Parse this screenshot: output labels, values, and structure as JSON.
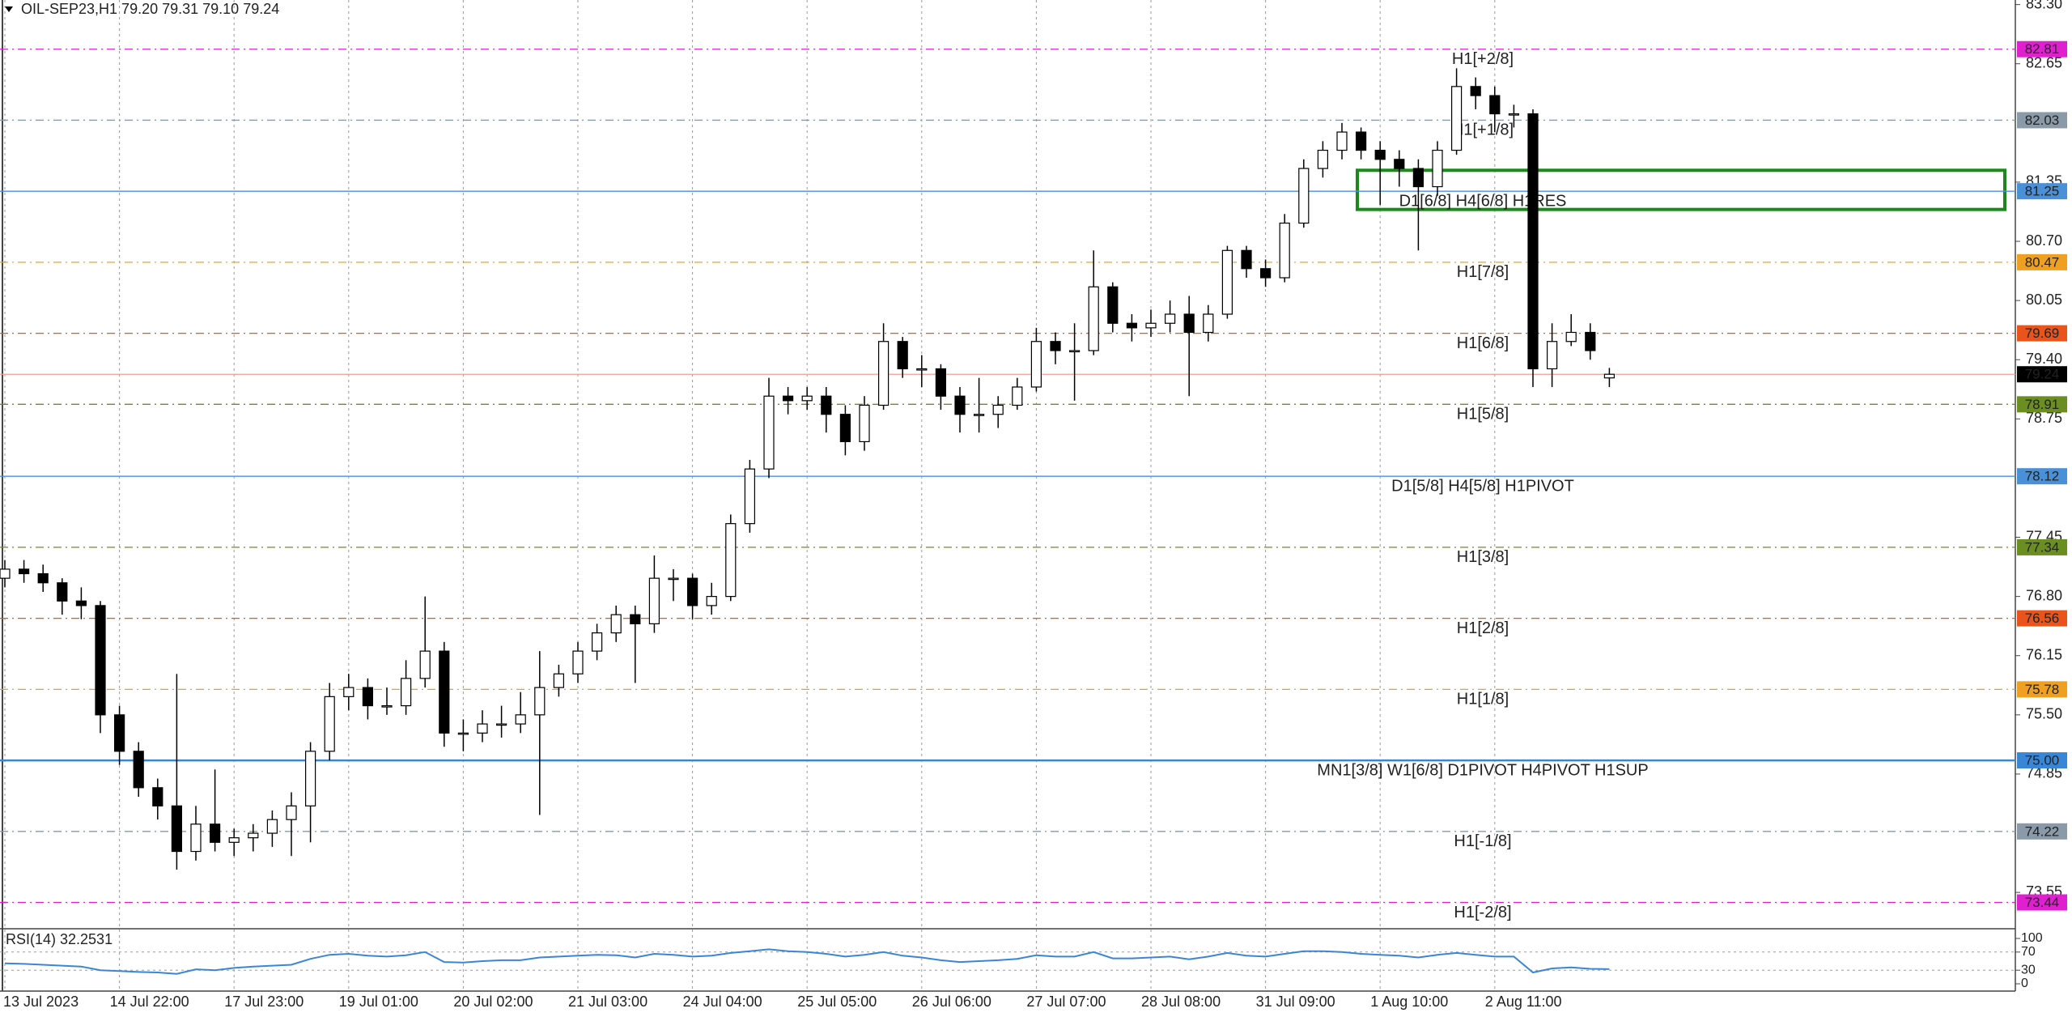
{
  "chart_data": [
    {
      "type": "candlestick",
      "title": "OIL-SEP23,H1  79.20 79.31 79.10 79.24",
      "categories": [
        "13 Jul 2023",
        null,
        null,
        null,
        null,
        null,
        "14 Jul 22:00",
        null,
        null,
        null,
        null,
        null,
        "17 Jul 23:00",
        null,
        null,
        null,
        null,
        null,
        "19 Jul 01:00",
        null,
        null,
        null,
        null,
        null,
        "20 Jul 02:00",
        null,
        null,
        null,
        null,
        null,
        "21 Jul 03:00",
        null,
        null,
        null,
        null,
        null,
        "24 Jul 04:00",
        null,
        null,
        null,
        null,
        null,
        "25 Jul 05:00",
        null,
        null,
        null,
        null,
        null,
        "26 Jul 06:00",
        null,
        null,
        null,
        null,
        null,
        "27 Jul 07:00",
        null,
        null,
        null,
        null,
        null,
        "28 Jul 08:00",
        null,
        null,
        null,
        null,
        null,
        "31 Jul 09:00",
        null,
        null,
        null,
        null,
        null,
        "1 Aug 10:00",
        null,
        null,
        null,
        null,
        null,
        "2 Aug 11:00",
        null,
        null,
        null,
        null,
        null,
        null
      ],
      "ohlc": [
        [
          77.0,
          77.2,
          76.9,
          77.1
        ],
        [
          77.1,
          77.2,
          76.95,
          77.05
        ],
        [
          77.05,
          77.15,
          76.85,
          76.95
        ],
        [
          76.95,
          77.0,
          76.6,
          76.75
        ],
        [
          76.75,
          76.9,
          76.55,
          76.7
        ],
        [
          76.7,
          76.75,
          75.3,
          75.5
        ],
        [
          75.5,
          75.6,
          74.95,
          75.1
        ],
        [
          75.1,
          75.2,
          74.6,
          74.7
        ],
        [
          74.7,
          74.8,
          74.35,
          74.5
        ],
        [
          74.5,
          75.95,
          73.8,
          74.0
        ],
        [
          74.0,
          74.5,
          73.9,
          74.3
        ],
        [
          74.3,
          74.9,
          74.0,
          74.1
        ],
        [
          74.1,
          74.25,
          73.95,
          74.15
        ],
        [
          74.15,
          74.3,
          74.0,
          74.2
        ],
        [
          74.2,
          74.45,
          74.05,
          74.35
        ],
        [
          74.35,
          74.65,
          73.95,
          74.5
        ],
        [
          74.5,
          75.2,
          74.1,
          75.1
        ],
        [
          75.1,
          75.85,
          75.0,
          75.7
        ],
        [
          75.7,
          75.95,
          75.55,
          75.8
        ],
        [
          75.8,
          75.9,
          75.45,
          75.6
        ],
        [
          75.6,
          75.8,
          75.5,
          75.6
        ],
        [
          75.6,
          76.1,
          75.5,
          75.9
        ],
        [
          75.9,
          76.8,
          75.8,
          76.2
        ],
        [
          76.2,
          76.3,
          75.15,
          75.3
        ],
        [
          75.3,
          75.45,
          75.1,
          75.3
        ],
        [
          75.3,
          75.55,
          75.2,
          75.4
        ],
        [
          75.4,
          75.6,
          75.25,
          75.4
        ],
        [
          75.4,
          75.75,
          75.3,
          75.5
        ],
        [
          75.5,
          76.2,
          74.4,
          75.8
        ],
        [
          75.8,
          76.05,
          75.7,
          75.95
        ],
        [
          75.95,
          76.3,
          75.85,
          76.2
        ],
        [
          76.2,
          76.5,
          76.1,
          76.4
        ],
        [
          76.4,
          76.7,
          76.3,
          76.6
        ],
        [
          76.6,
          76.7,
          75.85,
          76.5
        ],
        [
          76.5,
          77.25,
          76.4,
          77.0
        ],
        [
          77.0,
          77.1,
          76.75,
          77.0
        ],
        [
          77.0,
          77.05,
          76.55,
          76.7
        ],
        [
          76.7,
          76.95,
          76.6,
          76.8
        ],
        [
          76.8,
          77.7,
          76.75,
          77.6
        ],
        [
          77.6,
          78.3,
          77.5,
          78.2
        ],
        [
          78.2,
          79.2,
          78.1,
          79.0
        ],
        [
          79.0,
          79.1,
          78.8,
          78.95
        ],
        [
          78.95,
          79.1,
          78.85,
          79.0
        ],
        [
          79.0,
          79.1,
          78.6,
          78.8
        ],
        [
          78.8,
          78.9,
          78.35,
          78.5
        ],
        [
          78.5,
          79.0,
          78.4,
          78.9
        ],
        [
          78.9,
          79.8,
          78.85,
          79.6
        ],
        [
          79.6,
          79.65,
          79.2,
          79.3
        ],
        [
          79.3,
          79.45,
          79.1,
          79.3
        ],
        [
          79.3,
          79.35,
          78.85,
          79.0
        ],
        [
          79.0,
          79.1,
          78.6,
          78.8
        ],
        [
          78.8,
          79.2,
          78.6,
          78.8
        ],
        [
          78.8,
          79.0,
          78.65,
          78.9
        ],
        [
          78.9,
          79.2,
          78.85,
          79.1
        ],
        [
          79.1,
          79.75,
          79.05,
          79.6
        ],
        [
          79.6,
          79.7,
          79.35,
          79.5
        ],
        [
          79.5,
          79.8,
          78.95,
          79.5
        ],
        [
          79.5,
          80.6,
          79.45,
          80.2
        ],
        [
          80.2,
          80.25,
          79.7,
          79.8
        ],
        [
          79.8,
          79.9,
          79.6,
          79.75
        ],
        [
          79.75,
          79.95,
          79.65,
          79.8
        ],
        [
          79.8,
          80.05,
          79.7,
          79.9
        ],
        [
          79.9,
          80.1,
          79.0,
          79.7
        ],
        [
          79.7,
          80.0,
          79.6,
          79.9
        ],
        [
          79.9,
          80.65,
          79.85,
          80.6
        ],
        [
          80.6,
          80.65,
          80.3,
          80.4
        ],
        [
          80.4,
          80.5,
          80.2,
          80.3
        ],
        [
          80.3,
          81.0,
          80.25,
          80.9
        ],
        [
          80.9,
          81.6,
          80.85,
          81.5
        ],
        [
          81.5,
          81.8,
          81.4,
          81.7
        ],
        [
          81.7,
          82.0,
          81.6,
          81.9
        ],
        [
          81.9,
          81.95,
          81.6,
          81.7
        ],
        [
          81.7,
          81.8,
          81.1,
          81.6
        ],
        [
          81.6,
          81.7,
          81.3,
          81.5
        ],
        [
          81.5,
          81.6,
          80.6,
          81.3
        ],
        [
          81.3,
          81.8,
          81.2,
          81.7
        ],
        [
          81.7,
          82.6,
          81.65,
          82.4
        ],
        [
          82.4,
          82.5,
          82.15,
          82.3
        ],
        [
          82.3,
          82.4,
          81.9,
          82.1
        ],
        [
          82.1,
          82.2,
          81.95,
          82.1
        ],
        [
          82.1,
          82.15,
          79.1,
          79.3
        ],
        [
          79.3,
          79.8,
          79.1,
          79.6
        ],
        [
          79.6,
          79.9,
          79.55,
          79.7
        ],
        [
          79.7,
          79.8,
          79.4,
          79.5
        ],
        [
          79.2,
          79.31,
          79.1,
          79.24
        ]
      ],
      "up_color": "#ffffff",
      "down_color": "#000000",
      "wick_color": "#000000",
      "ylim": [
        73.16,
        83.35
      ],
      "yticks": [
        73.55,
        74.85,
        {
          "value": 75.5,
          "label": "75.50"
        },
        76.15,
        {
          "value": 76.8,
          "label": "76.80"
        },
        77.45,
        78.75,
        {
          "value": 79.4,
          "label": "79.40"
        },
        80.05,
        {
          "value": 80.7,
          "label": "80.70"
        },
        81.35,
        82.65,
        {
          "value": 83.3,
          "label": "83.30"
        }
      ],
      "levels": [
        {
          "price": 82.81,
          "name": "H1[+2/8]",
          "color": "#e020d0",
          "style": "dashdot"
        },
        {
          "price": 82.03,
          "name": "H1[+1/8]",
          "color": "#8a9aa8",
          "style": "dashdot"
        },
        {
          "price": 81.25,
          "name": "D1[6/8] H4[6/8] H1RES",
          "color": "#4a90d9",
          "style": "solid"
        },
        {
          "price": 80.47,
          "name": "H1[7/8]",
          "color": "#f0a020",
          "style": "dashdot"
        },
        {
          "price": 79.69,
          "name": "H1[6/8]",
          "color": "#e8541c",
          "style": "dashdot"
        },
        {
          "price": 78.91,
          "name": "H1[5/8]",
          "color": "#6b8e23",
          "style": "dashdot"
        },
        {
          "price": 78.12,
          "name": "D1[5/8] H4[5/8] H1PIVOT",
          "color": "#4a90d9",
          "style": "solid"
        },
        {
          "price": 77.34,
          "name": "H1[3/8]",
          "color": "#6b8e23",
          "style": "dashdot"
        },
        {
          "price": 76.56,
          "name": "H1[2/8]",
          "color": "#e8541c",
          "style": "dashdot"
        },
        {
          "price": 75.78,
          "name": "H1[1/8]",
          "color": "#f0a020",
          "style": "dashdot"
        },
        {
          "price": {
            "value": 75,
            "label": "75.00"
          },
          "name": "MN1[3/8] W1[6/8] D1PIVOT H4PIVOT H1SUP",
          "color": "#3a86d6",
          "style": "bold"
        },
        {
          "price": 74.22,
          "name": "H1[-1/8]",
          "color": "#8a9aa8",
          "style": "dashdot"
        },
        {
          "price": 73.44,
          "name": "H1[-2/8]",
          "color": "#e020d0",
          "style": "dashdot"
        }
      ],
      "last": {
        "price": 79.24,
        "color": "#f0a090",
        "box_color": "#000000"
      },
      "zone": {
        "high": 81.48,
        "low": 81.05,
        "color": "#1a8a1a"
      },
      "grid": true
    },
    {
      "type": "line",
      "title": "RSI(14) 32.2531",
      "color": "#3a86d6",
      "values": [
        45,
        44,
        42,
        40,
        38,
        30,
        28,
        26,
        25,
        22,
        32,
        30,
        35,
        38,
        40,
        42,
        55,
        64,
        66,
        62,
        60,
        63,
        70,
        48,
        47,
        50,
        52,
        52,
        58,
        60,
        62,
        64,
        63,
        58,
        66,
        64,
        60,
        62,
        68,
        72,
        76,
        72,
        70,
        66,
        60,
        64,
        70,
        62,
        58,
        52,
        48,
        50,
        52,
        55,
        63,
        60,
        60,
        70,
        56,
        56,
        58,
        60,
        54,
        60,
        68,
        62,
        60,
        66,
        72,
        72,
        70,
        66,
        64,
        62,
        58,
        64,
        68,
        64,
        60,
        60,
        25,
        34,
        36,
        33,
        32.2531
      ],
      "ylim": [
        0,
        100
      ],
      "yticks": [
        100,
        70,
        30,
        0
      ],
      "levels": [
        70,
        30
      ]
    }
  ]
}
